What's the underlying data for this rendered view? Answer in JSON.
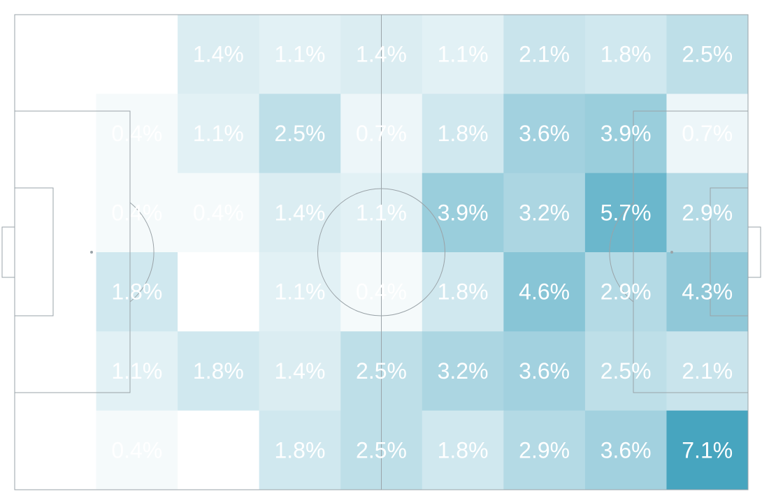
{
  "colors": {
    "low": "#ffffff",
    "high": "#47a5bf",
    "label": "#ffffff",
    "lines": "#9aa3a8"
  },
  "chart_data": {
    "type": "heatmap",
    "title": "",
    "xlabel": "",
    "ylabel": "",
    "grid": false,
    "legend": "none",
    "columns": 9,
    "rows": 6,
    "unit": "%",
    "values": [
      [
        null,
        null,
        1.4,
        1.1,
        1.4,
        1.1,
        2.1,
        1.8,
        2.5
      ],
      [
        null,
        0.4,
        1.1,
        2.5,
        0.7,
        1.8,
        3.6,
        3.9,
        0.7
      ],
      [
        null,
        0.4,
        0.4,
        1.4,
        1.1,
        3.9,
        3.2,
        5.7,
        2.9
      ],
      [
        null,
        1.8,
        null,
        1.1,
        0.4,
        1.8,
        4.6,
        2.9,
        4.3
      ],
      [
        null,
        1.1,
        1.8,
        1.4,
        2.5,
        3.2,
        3.6,
        2.5,
        2.1
      ],
      [
        null,
        0.4,
        null,
        1.8,
        2.5,
        1.8,
        2.9,
        3.6,
        7.1
      ]
    ],
    "labels": [
      [
        "",
        "",
        "1.4%",
        "1.1%",
        "1.4%",
        "1.1%",
        "2.1%",
        "1.8%",
        "2.5%"
      ],
      [
        "",
        "0.4%",
        "1.1%",
        "2.5%",
        "0.7%",
        "1.8%",
        "3.6%",
        "3.9%",
        "0.7%"
      ],
      [
        "",
        "0.4%",
        "0.4%",
        "1.4%",
        "1.1%",
        "3.9%",
        "3.2%",
        "5.7%",
        "2.9%"
      ],
      [
        "",
        "1.8%",
        "",
        "1.1%",
        "0.4%",
        "1.8%",
        "4.6%",
        "2.9%",
        "4.3%"
      ],
      [
        "",
        "1.1%",
        "1.8%",
        "1.4%",
        "2.5%",
        "3.2%",
        "3.6%",
        "2.5%",
        "2.1%"
      ],
      [
        "",
        "0.4%",
        "",
        "1.8%",
        "2.5%",
        "1.8%",
        "2.9%",
        "3.6%",
        "7.1%"
      ]
    ],
    "color_scale": {
      "min": 0,
      "max": 7.1
    }
  }
}
